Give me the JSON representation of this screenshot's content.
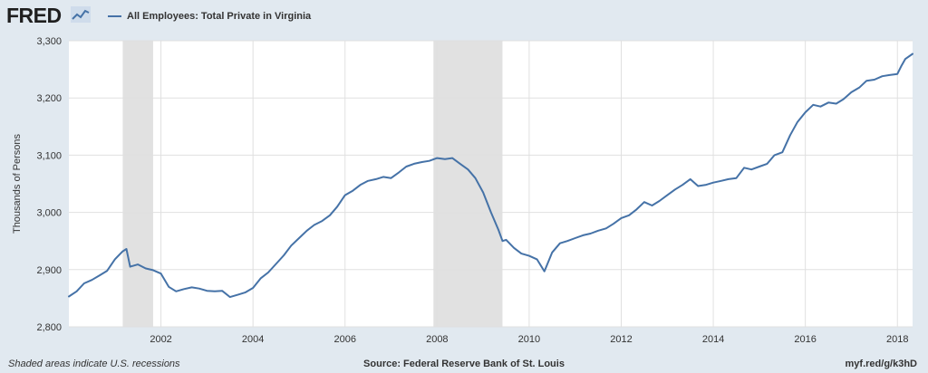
{
  "header": {
    "logo_text": "FRED",
    "logo_mark_icon": "fred-line-graph-icon"
  },
  "footer": {
    "note": "Shaded areas indicate U.S. recessions",
    "source": "Source: Federal Reserve Bank of St. Louis",
    "url": "myf.red/g/k3hD"
  },
  "colors": {
    "line": "#4572a7",
    "recession": "#e1e1e1",
    "plot_bg": "#ffffff",
    "page_bg": "#e1e9f0",
    "grid": "#e0e0e0"
  },
  "chart_data": {
    "type": "line",
    "title": "",
    "xlabel": "",
    "ylabel": "Thousands of Persons",
    "xlim": [
      2000.0,
      2018.33
    ],
    "ylim": [
      2800,
      3300
    ],
    "x_ticks": [
      2002,
      2004,
      2006,
      2008,
      2010,
      2012,
      2014,
      2016,
      2018
    ],
    "x_tick_labels": [
      "2002",
      "2004",
      "2006",
      "2008",
      "2010",
      "2012",
      "2014",
      "2016",
      "2018"
    ],
    "y_ticks": [
      2800,
      2900,
      3000,
      3100,
      3200,
      3300
    ],
    "y_tick_labels": [
      "2,800",
      "2,900",
      "3,000",
      "3,100",
      "3,200",
      "3,300"
    ],
    "grid": true,
    "legend_position": "top-left",
    "recessions": [
      {
        "start": 2001.17,
        "end": 2001.83
      },
      {
        "start": 2007.92,
        "end": 2009.42
      }
    ],
    "series": [
      {
        "name": "All Employees: Total Private in Virginia",
        "points": [
          [
            2000.0,
            2853
          ],
          [
            2000.17,
            2862
          ],
          [
            2000.33,
            2876
          ],
          [
            2000.5,
            2882
          ],
          [
            2000.67,
            2890
          ],
          [
            2000.83,
            2898
          ],
          [
            2001.0,
            2918
          ],
          [
            2001.17,
            2932
          ],
          [
            2001.25,
            2936
          ],
          [
            2001.33,
            2905
          ],
          [
            2001.5,
            2909
          ],
          [
            2001.67,
            2902
          ],
          [
            2001.83,
            2899
          ],
          [
            2002.0,
            2893
          ],
          [
            2002.17,
            2870
          ],
          [
            2002.33,
            2862
          ],
          [
            2002.5,
            2866
          ],
          [
            2002.67,
            2869
          ],
          [
            2002.83,
            2867
          ],
          [
            2003.0,
            2863
          ],
          [
            2003.17,
            2862
          ],
          [
            2003.33,
            2863
          ],
          [
            2003.5,
            2852
          ],
          [
            2003.67,
            2856
          ],
          [
            2003.83,
            2860
          ],
          [
            2004.0,
            2868
          ],
          [
            2004.17,
            2885
          ],
          [
            2004.33,
            2895
          ],
          [
            2004.5,
            2910
          ],
          [
            2004.67,
            2925
          ],
          [
            2004.83,
            2942
          ],
          [
            2005.0,
            2955
          ],
          [
            2005.17,
            2968
          ],
          [
            2005.33,
            2978
          ],
          [
            2005.5,
            2985
          ],
          [
            2005.67,
            2995
          ],
          [
            2005.83,
            3010
          ],
          [
            2006.0,
            3030
          ],
          [
            2006.17,
            3038
          ],
          [
            2006.33,
            3048
          ],
          [
            2006.5,
            3055
          ],
          [
            2006.67,
            3058
          ],
          [
            2006.83,
            3062
          ],
          [
            2007.0,
            3060
          ],
          [
            2007.17,
            3070
          ],
          [
            2007.33,
            3080
          ],
          [
            2007.5,
            3085
          ],
          [
            2007.67,
            3088
          ],
          [
            2007.83,
            3090
          ],
          [
            2008.0,
            3095
          ],
          [
            2008.17,
            3093
          ],
          [
            2008.33,
            3095
          ],
          [
            2008.5,
            3085
          ],
          [
            2008.67,
            3075
          ],
          [
            2008.83,
            3060
          ],
          [
            2009.0,
            3035
          ],
          [
            2009.17,
            3000
          ],
          [
            2009.33,
            2970
          ],
          [
            2009.42,
            2950
          ],
          [
            2009.5,
            2952
          ],
          [
            2009.67,
            2938
          ],
          [
            2009.83,
            2928
          ],
          [
            2010.0,
            2924
          ],
          [
            2010.17,
            2918
          ],
          [
            2010.33,
            2897
          ],
          [
            2010.5,
            2930
          ],
          [
            2010.67,
            2946
          ],
          [
            2010.83,
            2950
          ],
          [
            2011.0,
            2955
          ],
          [
            2011.17,
            2960
          ],
          [
            2011.33,
            2963
          ],
          [
            2011.5,
            2968
          ],
          [
            2011.67,
            2972
          ],
          [
            2011.83,
            2980
          ],
          [
            2012.0,
            2990
          ],
          [
            2012.17,
            2995
          ],
          [
            2012.33,
            3005
          ],
          [
            2012.5,
            3018
          ],
          [
            2012.67,
            3012
          ],
          [
            2012.83,
            3020
          ],
          [
            2013.0,
            3030
          ],
          [
            2013.17,
            3040
          ],
          [
            2013.33,
            3048
          ],
          [
            2013.5,
            3058
          ],
          [
            2013.67,
            3046
          ],
          [
            2013.83,
            3048
          ],
          [
            2014.0,
            3052
          ],
          [
            2014.17,
            3055
          ],
          [
            2014.33,
            3058
          ],
          [
            2014.5,
            3060
          ],
          [
            2014.67,
            3078
          ],
          [
            2014.83,
            3075
          ],
          [
            2015.0,
            3080
          ],
          [
            2015.17,
            3085
          ],
          [
            2015.33,
            3100
          ],
          [
            2015.5,
            3105
          ],
          [
            2015.67,
            3135
          ],
          [
            2015.83,
            3158
          ],
          [
            2016.0,
            3175
          ],
          [
            2016.17,
            3188
          ],
          [
            2016.33,
            3185
          ],
          [
            2016.5,
            3192
          ],
          [
            2016.67,
            3190
          ],
          [
            2016.83,
            3198
          ],
          [
            2017.0,
            3210
          ],
          [
            2017.17,
            3218
          ],
          [
            2017.33,
            3230
          ],
          [
            2017.5,
            3232
          ],
          [
            2017.67,
            3238
          ],
          [
            2017.83,
            3240
          ],
          [
            2018.0,
            3242
          ],
          [
            2018.08,
            3255
          ],
          [
            2018.17,
            3268
          ],
          [
            2018.33,
            3277
          ]
        ]
      }
    ]
  }
}
